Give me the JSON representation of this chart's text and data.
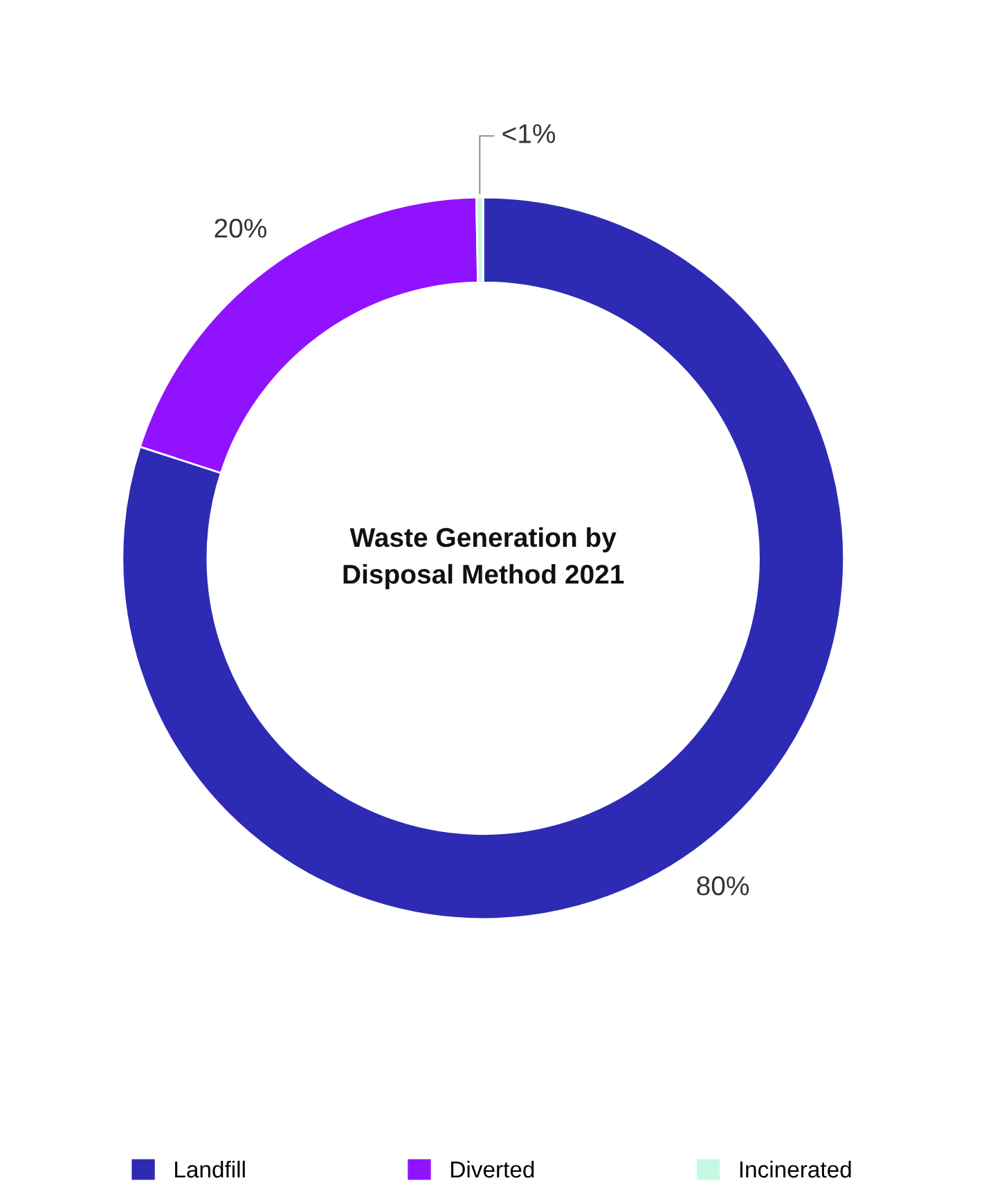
{
  "chart_data": {
    "type": "donut",
    "title": "Waste Generation by\nDisposal Method 2021",
    "categories": [
      "Landfill",
      "Diverted",
      "Incinerated"
    ],
    "values": [
      80,
      19.7,
      0.3
    ],
    "value_labels": [
      "80%",
      "20%",
      "<1%"
    ],
    "colors": [
      "#2d2bb4",
      "#9112fe",
      "#c6f8e4"
    ],
    "legend": "bottom"
  }
}
